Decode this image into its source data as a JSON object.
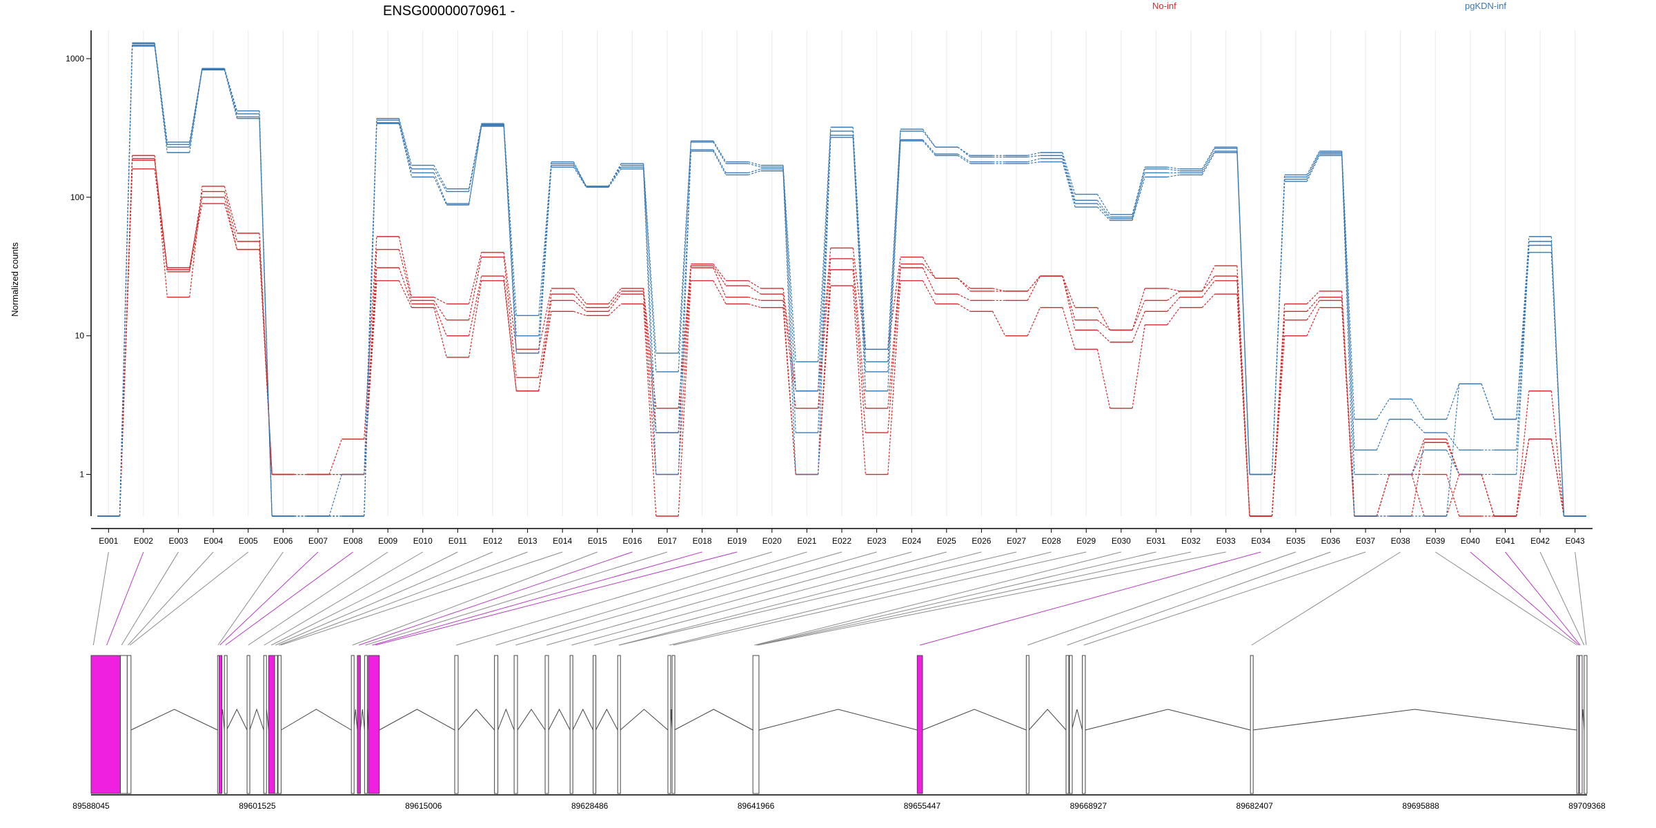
{
  "chart_data": {
    "type": "line",
    "title": "ENSG00000070961 -",
    "ylabel": "Normalized counts",
    "xlabel": "",
    "yscale": "log",
    "ylim": [
      0.5,
      1600
    ],
    "yticks": [
      {
        "label": "1000",
        "value": 1000
      },
      {
        "label": "100",
        "value": 100
      },
      {
        "label": "10",
        "value": 10
      },
      {
        "label": "1",
        "value": 1
      }
    ],
    "grid": "vertical",
    "legend": [
      {
        "label": "No-inf",
        "color": "#d62728"
      },
      {
        "label": "pgKDN-inf",
        "color": "#3778b5"
      }
    ],
    "categories": [
      "E001",
      "E002",
      "E003",
      "E004",
      "E005",
      "E006",
      "E007",
      "E008",
      "E009",
      "E010",
      "E011",
      "E012",
      "E013",
      "E014",
      "E015",
      "E016",
      "E017",
      "E018",
      "E019",
      "E020",
      "E021",
      "E022",
      "E023",
      "E024",
      "E025",
      "E026",
      "E027",
      "E028",
      "E029",
      "E030",
      "E031",
      "E032",
      "E033",
      "E034",
      "E035",
      "E036",
      "E037",
      "E038",
      "E039",
      "E040",
      "E041",
      "E042",
      "E043"
    ],
    "series": [
      {
        "group": "No-inf",
        "color": "#d62728",
        "values": [
          0.5,
          200,
          19,
          120,
          55,
          1,
          1,
          1.8,
          52,
          19,
          17,
          40,
          8,
          22,
          17,
          22,
          3,
          33,
          25,
          22,
          4,
          43,
          8,
          37,
          26,
          22,
          21,
          27,
          16,
          11,
          22,
          21,
          32,
          0.5,
          17,
          21,
          0.5,
          1,
          1.8,
          1,
          0.5,
          4,
          0.5
        ]
      },
      {
        "group": "No-inf",
        "color": "#d62728",
        "values": [
          0.5,
          190,
          30,
          110,
          48,
          1,
          1,
          1,
          42,
          18,
          13,
          37,
          5,
          20,
          16,
          21,
          2,
          32,
          23,
          20,
          3,
          36,
          3,
          33,
          26,
          21,
          21,
          27,
          13,
          11,
          18,
          21,
          27,
          0.5,
          15,
          19,
          0.5,
          0.5,
          1.7,
          1,
          0.5,
          1.8,
          0.5
        ]
      },
      {
        "group": "No-inf",
        "color": "#d62728",
        "values": [
          0.5,
          185,
          31,
          100,
          42,
          1,
          1,
          1,
          31,
          17,
          10,
          27,
          4,
          18,
          15,
          20,
          1,
          31,
          19,
          18,
          1,
          30,
          2,
          31,
          20,
          18,
          18,
          27,
          11,
          9,
          15,
          19,
          25,
          0.5,
          13,
          18,
          0.5,
          1,
          1,
          0.5,
          0.5,
          1.8,
          0.5
        ]
      },
      {
        "group": "No-inf",
        "color": "#d62728",
        "values": [
          0.5,
          160,
          29,
          90,
          42,
          1,
          1,
          1,
          25,
          16,
          7,
          25,
          4,
          15,
          14,
          17,
          0.5,
          25,
          17,
          16,
          1,
          23,
          1,
          25,
          17,
          15,
          10,
          16,
          8,
          3,
          12,
          16,
          20,
          0.5,
          10,
          16,
          0.5,
          1,
          0.5,
          1,
          0.5,
          1.8,
          0.5
        ]
      },
      {
        "group": "pgKDN-inf",
        "color": "#3778b5",
        "values": [
          0.5,
          1300,
          250,
          850,
          420,
          0.5,
          0.5,
          0.5,
          370,
          170,
          115,
          340,
          14,
          180,
          120,
          175,
          7.5,
          255,
          180,
          170,
          6.5,
          320,
          8,
          310,
          230,
          200,
          200,
          210,
          105,
          75,
          165,
          160,
          230,
          1,
          145,
          215,
          2.5,
          3.5,
          2.5,
          4.5,
          2.5,
          52,
          0.5
        ]
      },
      {
        "group": "pgKDN-inf",
        "color": "#3778b5",
        "values": [
          0.5,
          1280,
          230,
          850,
          400,
          0.5,
          0.5,
          0.5,
          360,
          160,
          110,
          335,
          10,
          175,
          120,
          170,
          5.5,
          250,
          175,
          165,
          4,
          300,
          6.5,
          300,
          230,
          195,
          195,
          200,
          95,
          72,
          160,
          155,
          225,
          1,
          140,
          210,
          1.5,
          2.5,
          2,
          1.5,
          1.5,
          48,
          0.5
        ]
      },
      {
        "group": "pgKDN-inf",
        "color": "#3778b5",
        "values": [
          0.5,
          1250,
          210,
          840,
          380,
          0.5,
          0.5,
          0.5,
          345,
          150,
          90,
          330,
          7.5,
          170,
          120,
          165,
          2,
          220,
          150,
          160,
          2,
          280,
          5.5,
          260,
          205,
          180,
          180,
          190,
          90,
          70,
          150,
          150,
          215,
          1,
          135,
          205,
          1,
          1,
          1.5,
          1,
          1,
          45,
          0.5
        ]
      },
      {
        "group": "pgKDN-inf",
        "color": "#3778b5",
        "values": [
          0.5,
          1230,
          240,
          830,
          370,
          0.5,
          0.5,
          1,
          340,
          140,
          88,
          325,
          7.5,
          165,
          118,
          160,
          1,
          215,
          145,
          155,
          1,
          270,
          4,
          255,
          200,
          175,
          175,
          180,
          85,
          68,
          140,
          145,
          210,
          1,
          130,
          200,
          0.5,
          0.5,
          0.5,
          4.5,
          2.5,
          40,
          0.5
        ]
      }
    ],
    "gene_model": {
      "coordinate_ticks": [
        "89588045",
        "89601525",
        "89615006",
        "89628486",
        "89641966",
        "89655447",
        "89668927",
        "89682407",
        "89695888",
        "89709368"
      ],
      "genomic_range": [
        89588045,
        89709368
      ],
      "exons": [
        {
          "start": 89588045,
          "end": 89590423,
          "highlight": true
        },
        {
          "start": 89590423,
          "end": 89590976,
          "highlight": false
        },
        {
          "start": 89590976,
          "end": 89591282,
          "highlight": false
        },
        {
          "start": 89598304,
          "end": 89598427,
          "highlight": false
        },
        {
          "start": 89598427,
          "end": 89598550,
          "highlight": true
        },
        {
          "start": 89598856,
          "end": 89599040,
          "highlight": false
        },
        {
          "start": 89600696,
          "end": 89600911,
          "highlight": false
        },
        {
          "start": 89602046,
          "end": 89602107,
          "highlight": false
        },
        {
          "start": 89602445,
          "end": 89602936,
          "highlight": true
        },
        {
          "start": 89602936,
          "end": 89603120,
          "highlight": false
        },
        {
          "start": 89603212,
          "end": 89603457,
          "highlight": false
        },
        {
          "start": 89609152,
          "end": 89609336,
          "highlight": false
        },
        {
          "start": 89609643,
          "end": 89609888,
          "highlight": true
        },
        {
          "start": 89610225,
          "end": 89610379,
          "highlight": false
        },
        {
          "start": 89610532,
          "end": 89611421,
          "highlight": true
        },
        {
          "start": 89617538,
          "end": 89617814,
          "highlight": false
        },
        {
          "start": 89620761,
          "end": 89621037,
          "highlight": false
        },
        {
          "start": 89622355,
          "end": 89622631,
          "highlight": false
        },
        {
          "start": 89624870,
          "end": 89625146,
          "highlight": false
        },
        {
          "start": 89626893,
          "end": 89627108,
          "highlight": false
        },
        {
          "start": 89628762,
          "end": 89628977,
          "highlight": false
        },
        {
          "start": 89630754,
          "end": 89630969,
          "highlight": false
        },
        {
          "start": 89634828,
          "end": 89635043,
          "highlight": false
        },
        {
          "start": 89635166,
          "end": 89635350,
          "highlight": false
        },
        {
          "start": 89641721,
          "end": 89642211,
          "highlight": false
        },
        {
          "start": 89655048,
          "end": 89655478,
          "highlight": true
        },
        {
          "start": 89663890,
          "end": 89664105,
          "highlight": false
        },
        {
          "start": 89667118,
          "end": 89667303,
          "highlight": false
        },
        {
          "start": 89667394,
          "end": 89667579,
          "highlight": false
        },
        {
          "start": 89668437,
          "end": 89668682,
          "highlight": false
        },
        {
          "start": 89682070,
          "end": 89682254,
          "highlight": false
        },
        {
          "start": 89708539,
          "end": 89708693,
          "highlight": false
        },
        {
          "start": 89708693,
          "end": 89708754,
          "highlight": true
        },
        {
          "start": 89708754,
          "end": 89708937,
          "highlight": false
        },
        {
          "start": 89709137,
          "end": 89709368,
          "highlight": false
        }
      ],
      "exon_bin_links": [
        {
          "bin": "E001",
          "pos": 89588231,
          "highlight": false
        },
        {
          "bin": "E002",
          "pos": 89589310,
          "highlight": true
        },
        {
          "bin": "E003",
          "pos": 89590514,
          "highlight": false
        },
        {
          "bin": "E004",
          "pos": 89591037,
          "highlight": false
        },
        {
          "bin": "E005",
          "pos": 89591190,
          "highlight": false
        },
        {
          "bin": "E006",
          "pos": 89598335,
          "highlight": false
        },
        {
          "bin": "E007",
          "pos": 89598488,
          "highlight": true
        },
        {
          "bin": "E008",
          "pos": 89598948,
          "highlight": true
        },
        {
          "bin": "E009",
          "pos": 89600788,
          "highlight": false
        },
        {
          "bin": "E010",
          "pos": 89602077,
          "highlight": false
        },
        {
          "bin": "E011",
          "pos": 89602660,
          "highlight": false
        },
        {
          "bin": "E012",
          "pos": 89602997,
          "highlight": false
        },
        {
          "bin": "E013",
          "pos": 89603273,
          "highlight": false
        },
        {
          "bin": "E014",
          "pos": 89603426,
          "highlight": false
        },
        {
          "bin": "E015",
          "pos": 89609244,
          "highlight": false
        },
        {
          "bin": "E016",
          "pos": 89609766,
          "highlight": true
        },
        {
          "bin": "E017",
          "pos": 89610286,
          "highlight": false
        },
        {
          "bin": "E018",
          "pos": 89610839,
          "highlight": true
        },
        {
          "bin": "E019",
          "pos": 89611115,
          "highlight": true
        },
        {
          "bin": "E020",
          "pos": 89617660,
          "highlight": false
        },
        {
          "bin": "E021",
          "pos": 89620884,
          "highlight": false
        },
        {
          "bin": "E022",
          "pos": 89622477,
          "highlight": false
        },
        {
          "bin": "E023",
          "pos": 89624992,
          "highlight": false
        },
        {
          "bin": "E024",
          "pos": 89627016,
          "highlight": false
        },
        {
          "bin": "E025",
          "pos": 89628854,
          "highlight": false
        },
        {
          "bin": "E026",
          "pos": 89630846,
          "highlight": false
        },
        {
          "bin": "E027",
          "pos": 89630877,
          "highlight": false
        },
        {
          "bin": "E028",
          "pos": 89634951,
          "highlight": false
        },
        {
          "bin": "E029",
          "pos": 89635258,
          "highlight": false
        },
        {
          "bin": "E030",
          "pos": 89641844,
          "highlight": false
        },
        {
          "bin": "E031",
          "pos": 89641997,
          "highlight": false
        },
        {
          "bin": "E032",
          "pos": 89642089,
          "highlight": false
        },
        {
          "bin": "E033",
          "pos": 89642150,
          "highlight": false
        },
        {
          "bin": "E034",
          "pos": 89655263,
          "highlight": true
        },
        {
          "bin": "E035",
          "pos": 89663997,
          "highlight": false
        },
        {
          "bin": "E036",
          "pos": 89667210,
          "highlight": false
        },
        {
          "bin": "E037",
          "pos": 89668559,
          "highlight": false
        },
        {
          "bin": "E038",
          "pos": 89682162,
          "highlight": false
        },
        {
          "bin": "E039",
          "pos": 89708570,
          "highlight": false
        },
        {
          "bin": "E040",
          "pos": 89708723,
          "highlight": true
        },
        {
          "bin": "E041",
          "pos": 89708815,
          "highlight": true
        },
        {
          "bin": "E042",
          "pos": 89709137,
          "highlight": false
        },
        {
          "bin": "E043",
          "pos": 89709306,
          "highlight": false
        }
      ]
    }
  }
}
